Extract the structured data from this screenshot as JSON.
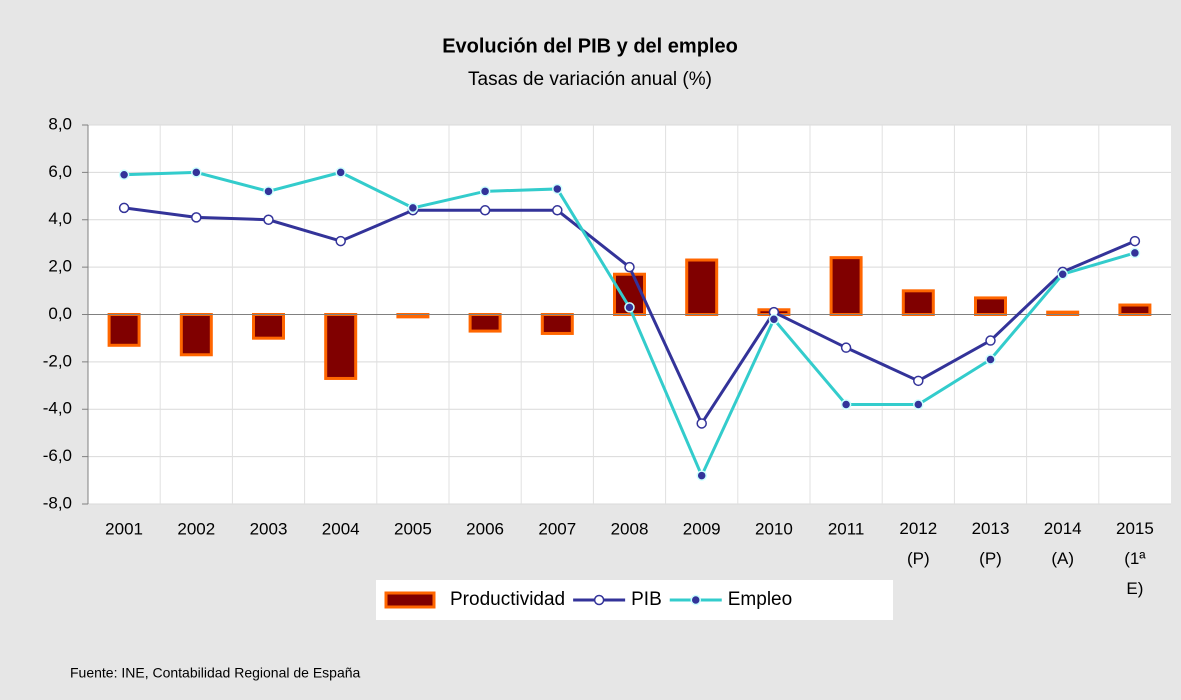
{
  "chart_data": {
    "type": "bar_line",
    "title": "Evolución del PIB y del empleo",
    "subtitle": "Tasas de variación  anual (%)",
    "source": "Fuente: INE, Contabilidad Regional de España",
    "categories": [
      "2001",
      "2002",
      "2003",
      "2004",
      "2005",
      "2006",
      "2007",
      "2008",
      "2009",
      "2010",
      "2011",
      "2012 (P)",
      "2013 (P)",
      "2014 (A)",
      "2015 (1ª E)"
    ],
    "series": [
      {
        "name": "Productividad",
        "kind": "bar",
        "color": "#800000",
        "edge_color": "#ff6600",
        "values": [
          -1.3,
          -1.7,
          -1.0,
          -2.7,
          -0.1,
          -0.7,
          -0.8,
          1.7,
          2.3,
          0.2,
          2.4,
          1.0,
          0.7,
          0.1,
          0.4
        ]
      },
      {
        "name": "PIB",
        "kind": "line",
        "color": "#333399",
        "marker_color": "#ffffff",
        "values": [
          4.5,
          4.1,
          4.0,
          3.1,
          4.4,
          4.4,
          4.4,
          2.0,
          -4.6,
          0.1,
          -1.4,
          -2.8,
          -1.1,
          1.8,
          3.1
        ]
      },
      {
        "name": "Empleo",
        "kind": "line",
        "color": "#33cccc",
        "marker_color": "#333399",
        "values": [
          5.9,
          6.0,
          5.2,
          6.0,
          4.5,
          5.2,
          5.3,
          0.3,
          -6.8,
          -0.2,
          -3.8,
          -3.8,
          -1.9,
          1.7,
          2.6
        ]
      }
    ],
    "ylim": [
      -8,
      8
    ],
    "yticks": [
      {
        "value": -8,
        "label": "-8,0"
      },
      {
        "value": -6,
        "label": "-6,0"
      },
      {
        "value": -4,
        "label": "-4,0"
      },
      {
        "value": -2,
        "label": "-2,0"
      },
      {
        "value": 0,
        "label": "0,0"
      },
      {
        "value": 2,
        "label": "2,0"
      },
      {
        "value": 4,
        "label": "4,0"
      },
      {
        "value": 6,
        "label": "6,0"
      },
      {
        "value": 8,
        "label": "8,0"
      }
    ],
    "grid": true,
    "legend": "bottom"
  }
}
